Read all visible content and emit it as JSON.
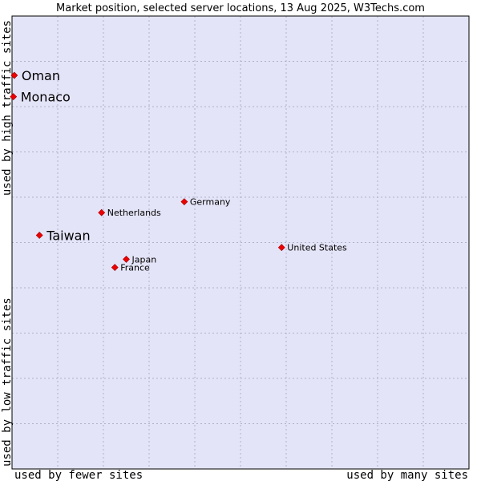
{
  "chart_data": {
    "type": "scatter",
    "title": "Market position, selected server locations, 13 Aug 2025, W3Techs.com",
    "xlabel_left": "used by fewer sites",
    "xlabel_right": "used by many sites",
    "ylabel_bottom": "used by low traffic sites",
    "ylabel_top": "used by high traffic sites",
    "xlim": [
      0,
      100
    ],
    "ylim": [
      0,
      100
    ],
    "grid": true,
    "plot_bg": "#e4e4f8",
    "grid_color": "#b0b0c8",
    "marker_color": "#ee0000",
    "points": [
      {
        "name": "Oman",
        "x": 0.5,
        "y": 86.9,
        "emphasis": true
      },
      {
        "name": "Monaco",
        "x": 0.3,
        "y": 82.2,
        "emphasis": true
      },
      {
        "name": "Germany",
        "x": 37.7,
        "y": 59.0,
        "emphasis": false
      },
      {
        "name": "Netherlands",
        "x": 19.6,
        "y": 56.6,
        "emphasis": false
      },
      {
        "name": "Taiwan",
        "x": 6.0,
        "y": 51.6,
        "emphasis": true
      },
      {
        "name": "United States",
        "x": 59.0,
        "y": 48.9,
        "emphasis": false
      },
      {
        "name": "Japan",
        "x": 25.0,
        "y": 46.3,
        "emphasis": false
      },
      {
        "name": "France",
        "x": 22.5,
        "y": 44.5,
        "emphasis": false
      }
    ]
  }
}
